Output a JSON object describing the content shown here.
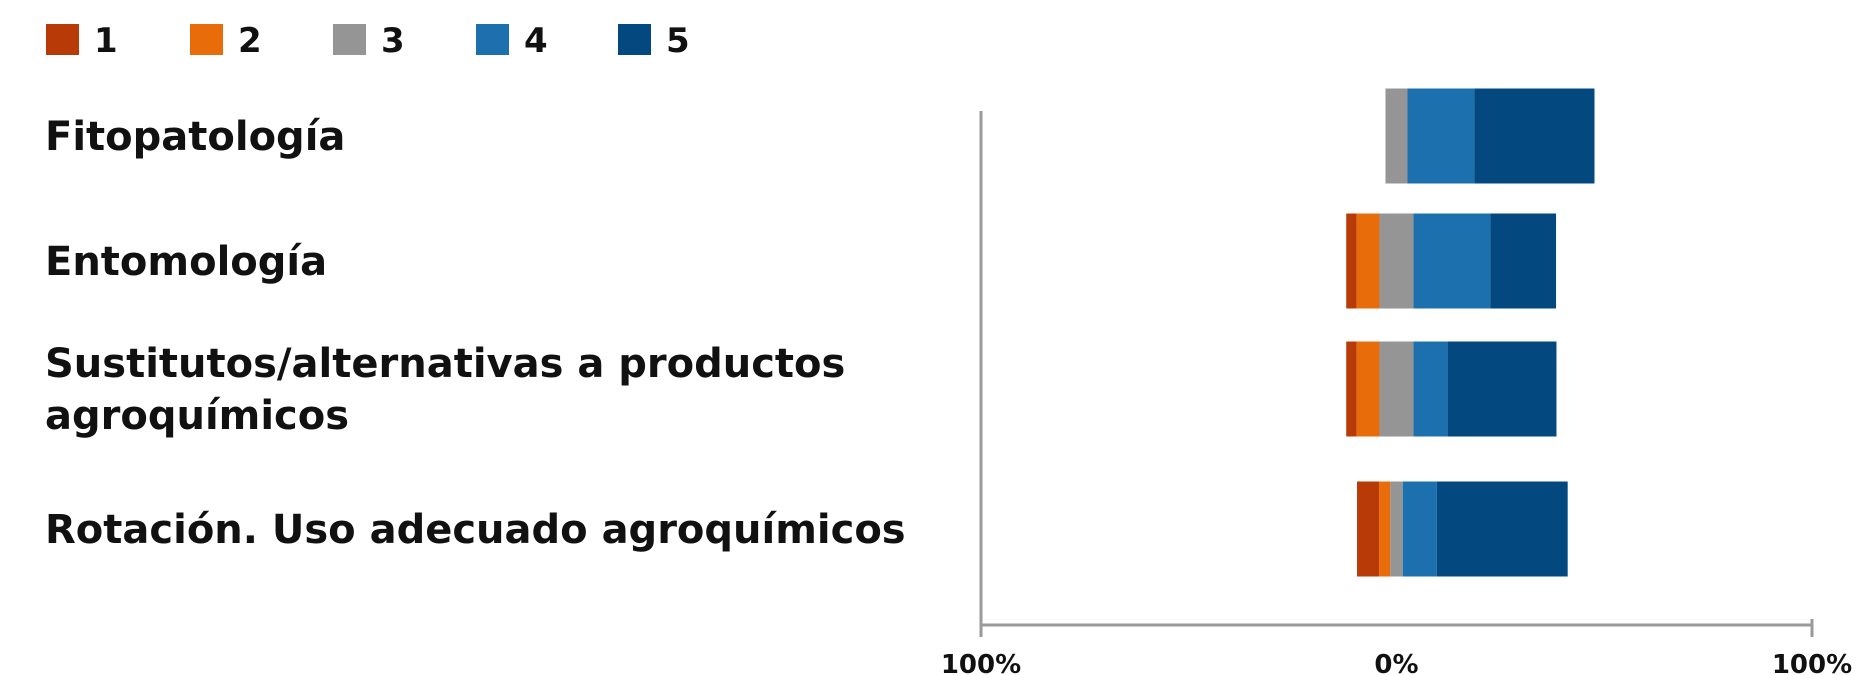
{
  "chart_data": {
    "type": "bar",
    "subtype": "diverging-stacked-horizontal",
    "title": "",
    "xlabel": "",
    "ylabel": "",
    "legend": {
      "placement": "top-left",
      "entries": [
        "1",
        "2",
        "3",
        "4",
        "5"
      ]
    },
    "colors": [
      "#b83a07",
      "#e86c0a",
      "#959595",
      "#1b70ad",
      "#03487f"
    ],
    "categories": [
      [
        "Fitopatología"
      ],
      [
        "Entomología"
      ],
      [
        "Sustitutos/alternativas a productos",
        "agroquímicos"
      ],
      [
        "Rotación. Uso adecuado agroquímicos"
      ]
    ],
    "series": [
      {
        "name": "1",
        "values": [
          0,
          2.5,
          2.5,
          5.3
        ]
      },
      {
        "name": "2",
        "values": [
          0,
          5.5,
          5.5,
          2.7
        ]
      },
      {
        "name": "3",
        "values": [
          5.3,
          8.2,
          8.2,
          3.0
        ]
      },
      {
        "name": "4",
        "values": [
          16.1,
          18.5,
          8.2,
          8.2
        ]
      },
      {
        "name": "5",
        "values": [
          28.9,
          15.8,
          26.2,
          31.5
        ]
      }
    ],
    "xlim": [
      -100,
      100
    ],
    "xticks": [
      "100%",
      "0%",
      "100%"
    ],
    "grid": false
  }
}
